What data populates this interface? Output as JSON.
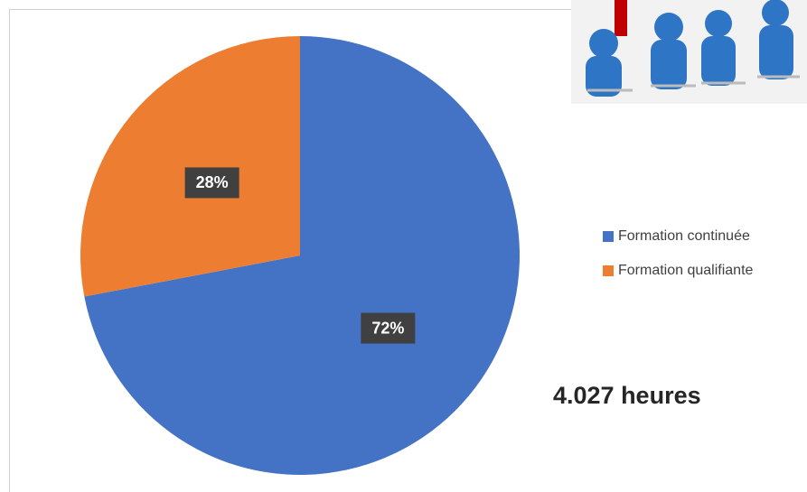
{
  "chart_data": {
    "type": "pie",
    "categories": [
      "Formation continuée",
      "Formation qualifiante"
    ],
    "values": [
      72,
      28
    ],
    "value_labels": [
      "72%",
      "28%"
    ],
    "colors": [
      "#4472c4",
      "#ed7d31"
    ],
    "annotation": "4.027 heures",
    "legend": "right"
  }
}
